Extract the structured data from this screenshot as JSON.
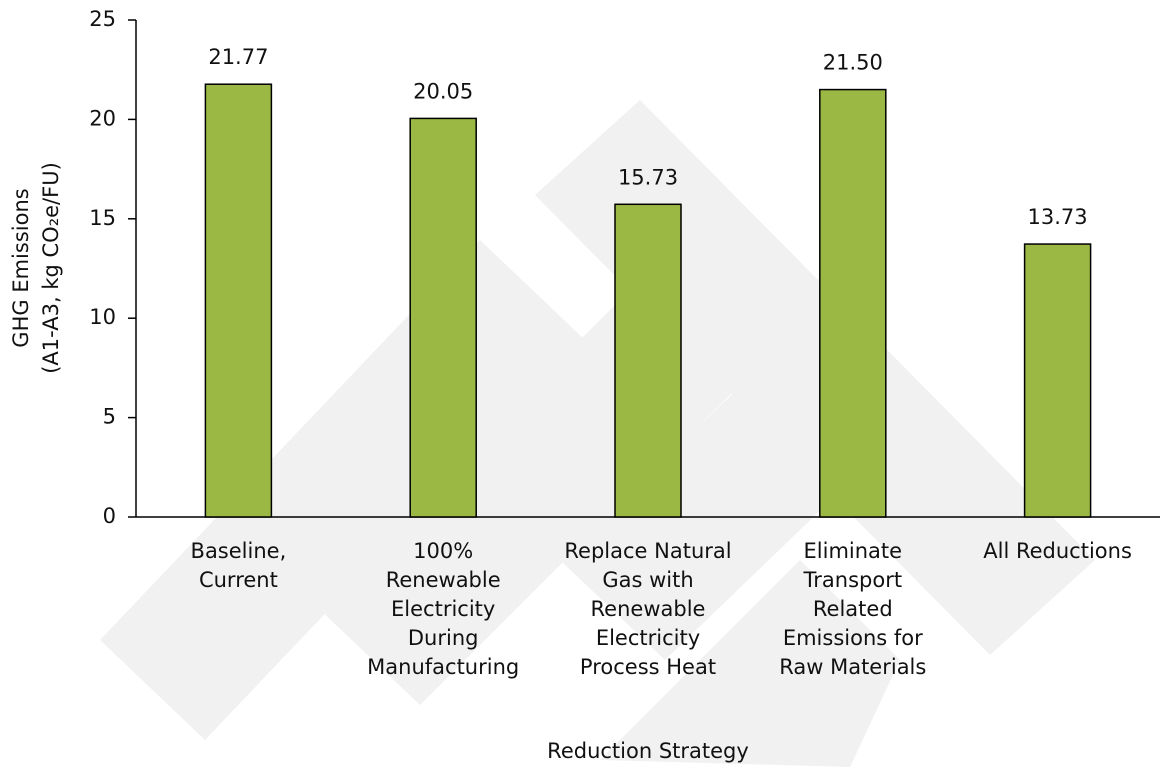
{
  "chart_data": {
    "type": "bar",
    "x_label": "Reduction Strategy",
    "y_label": [
      "GHG Emissions",
      "(A1-A3,  kg CO₂e/FU)"
    ],
    "categories": [
      "Baseline, Current",
      "100% Renewable Electricity During Manufacturing",
      "Replace Natural Gas with Renewable Electricity Process Heat",
      "Eliminate Transport Related Emissions for Raw Materials",
      "All Reductions"
    ],
    "values": [
      21.77,
      20.05,
      15.73,
      21.5,
      13.73
    ],
    "value_labels": [
      "21.77",
      "20.05",
      "15.73",
      "21.50",
      "13.73"
    ],
    "color": "#9ab843",
    "ylim": [
      0,
      25
    ],
    "yticks": [
      0,
      5,
      10,
      15,
      20,
      25
    ],
    "grid": false
  }
}
